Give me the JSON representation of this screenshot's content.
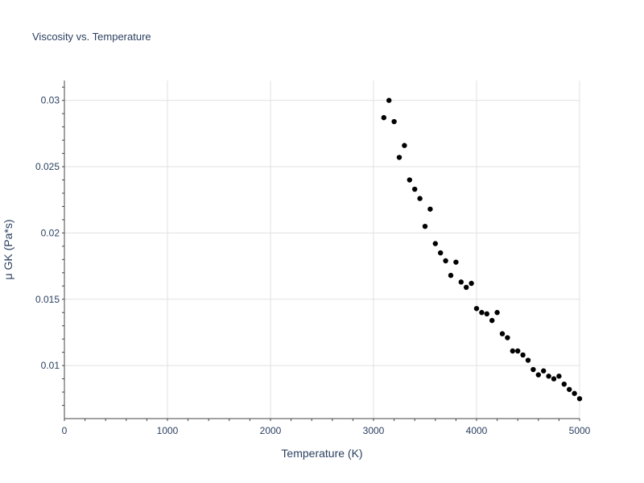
{
  "chart_data": {
    "type": "scatter",
    "title": "Viscosity vs. Temperature",
    "xlabel": "Temperature (K)",
    "ylabel": "μ GK (Pa*s)",
    "xlim": [
      0,
      5000
    ],
    "ylim": [
      0.006,
      0.0315
    ],
    "x_ticks": [
      0,
      1000,
      2000,
      3000,
      4000,
      5000
    ],
    "x_tick_labels": [
      "0",
      "1000",
      "2000",
      "3000",
      "4000",
      "5000"
    ],
    "y_ticks": [
      0.01,
      0.015,
      0.02,
      0.025,
      0.03
    ],
    "y_tick_labels": [
      "0.01",
      "0.015",
      "0.02",
      "0.025",
      "0.03"
    ],
    "grid": true,
    "marker_color": "#000000",
    "series": [
      {
        "x": [
          3100,
          3150,
          3200,
          3250,
          3300,
          3350,
          3400,
          3450,
          3500,
          3550,
          3600,
          3650,
          3700,
          3750,
          3800,
          3850,
          3900,
          3950,
          4000,
          4050,
          4100,
          4150,
          4200,
          4250,
          4300,
          4350,
          4400,
          4450,
          4500,
          4550,
          4600,
          4650,
          4700,
          4750,
          4800,
          4850,
          4900,
          4950,
          5000
        ],
        "y": [
          0.0287,
          0.03,
          0.0284,
          0.0257,
          0.0266,
          0.024,
          0.0233,
          0.0226,
          0.0205,
          0.0218,
          0.0192,
          0.0185,
          0.0179,
          0.0168,
          0.0178,
          0.0163,
          0.0159,
          0.0162,
          0.0143,
          0.014,
          0.0139,
          0.0134,
          0.014,
          0.0124,
          0.0121,
          0.0111,
          0.0111,
          0.0108,
          0.0104,
          0.0097,
          0.0093,
          0.0096,
          0.0092,
          0.009,
          0.0092,
          0.0086,
          0.0082,
          0.0079,
          0.0075
        ]
      }
    ]
  }
}
